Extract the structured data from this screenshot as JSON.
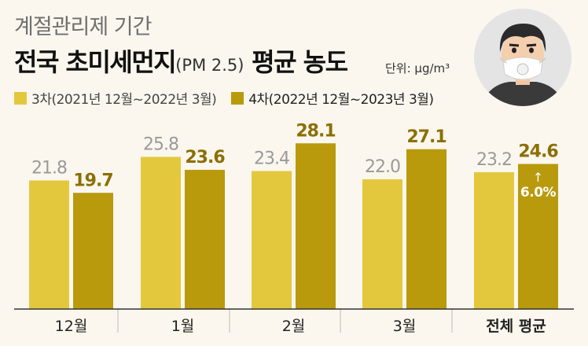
{
  "subtitle": "계절관리제 기간",
  "title_main": "전국 초미세먼지",
  "title_paren": "(PM 2.5)",
  "title_tail": "평균 농도",
  "unit": "단위: μg/m³",
  "colors": {
    "series1": "#e3c83e",
    "series2": "#b89a0c",
    "label1": "#9a9a9a",
    "label2": "#8b6f00",
    "axis": "#333333"
  },
  "chart_data": {
    "type": "bar",
    "categories": [
      "12월",
      "1월",
      "2월",
      "3월",
      "전체 평균"
    ],
    "series": [
      {
        "name": "3차(2021년 12월~2022년 3월)",
        "values": [
          21.8,
          25.8,
          23.4,
          22.0,
          23.2
        ]
      },
      {
        "name": "4차(2022년 12월~2023년 3월)",
        "values": [
          19.7,
          23.6,
          28.1,
          27.1,
          24.6
        ]
      }
    ],
    "annotation": {
      "category": "전체 평균",
      "text": "↑",
      "value_text": "6.0%"
    },
    "ylim": [
      0,
      30
    ]
  }
}
